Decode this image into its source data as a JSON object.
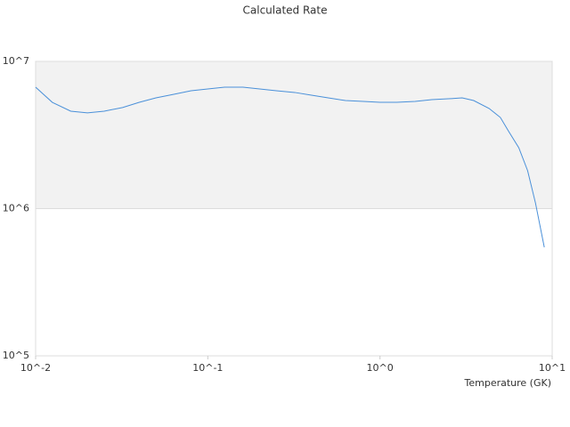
{
  "chart_data": {
    "type": "line",
    "title": "Calculated Rate",
    "x_label": "Temperature (GK)",
    "log_x": true,
    "log_y": true,
    "xlim": [
      0.01,
      10
    ],
    "ylim": [
      100000,
      10000000
    ],
    "xticks": [
      {
        "value": 0.01,
        "label": "10^-2"
      },
      {
        "value": 0.1,
        "label": "10^-1"
      },
      {
        "value": 1,
        "label": "10^0"
      },
      {
        "value": 10,
        "label": "10^1"
      }
    ],
    "yticks": [
      {
        "value": 100000,
        "label": "10^5"
      },
      {
        "value": 1000000,
        "label": "10^6"
      },
      {
        "value": 10000000,
        "label": "10^7"
      }
    ],
    "shaded_range": [
      1000000,
      10000000
    ],
    "shade_color": "#f2f2f2",
    "x": [
      0.01,
      0.0125,
      0.016,
      0.02,
      0.025,
      0.032,
      0.04,
      0.05,
      0.063,
      0.08,
      0.1,
      0.125,
      0.16,
      0.2,
      0.25,
      0.32,
      0.4,
      0.5,
      0.63,
      0.8,
      1,
      1.25,
      1.6,
      2,
      2.5,
      3,
      3.5,
      4.3,
      5,
      5.6,
      6.4,
      7.2,
      8,
      9
    ],
    "series": [
      {
        "color": "#4a90d9",
        "values": [
          6680000,
          5270000,
          4590000,
          4470000,
          4590000,
          4860000,
          5270000,
          5650000,
          5970000,
          6320000,
          6500000,
          6680000,
          6680000,
          6500000,
          6320000,
          6150000,
          5890000,
          5650000,
          5420000,
          5350000,
          5270000,
          5270000,
          5350000,
          5500000,
          5570000,
          5650000,
          5420000,
          4790000,
          4160000,
          3330000,
          2590000,
          1810000,
          1090000,
          546000
        ]
      }
    ]
  }
}
